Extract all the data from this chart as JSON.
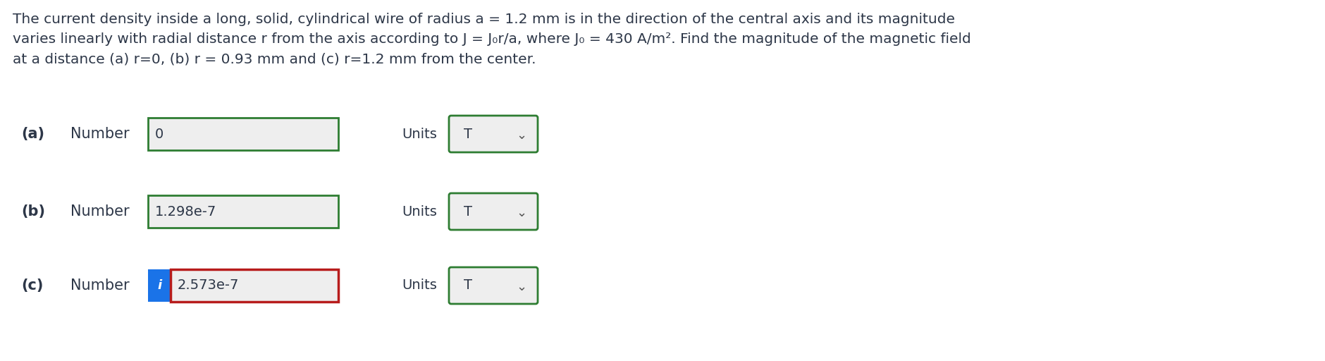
{
  "background_color": "#ffffff",
  "text_color": "#2d3748",
  "para_lines": [
    "The current density inside a long, solid, cylindrical wire of radius a = 1.2 mm is in the direction of the central axis and its magnitude",
    "varies linearly with radial distance r from the axis according to J = J₀r/a, where J₀ = 430 A/m². Find the magnitude of the magnetic field",
    "at a distance (a) r=0, (b) r = 0.93 mm and (c) r=1.2 mm from the center."
  ],
  "rows": [
    {
      "label": "(a)",
      "number_value": "0",
      "units_value": "T",
      "highlight": false
    },
    {
      "label": "(b)",
      "number_value": "1.298e-7",
      "units_value": "T",
      "highlight": false
    },
    {
      "label": "(c)",
      "number_value": "2.573e-7",
      "units_value": "T",
      "highlight": true
    }
  ],
  "box_border_color": "#2e7d32",
  "highlight_border_color": "#b71c1c",
  "highlight_icon_color": "#1a73e8",
  "box_fill_color": "#eeeeee",
  "units_fill_color": "#eeeeee",
  "label_fontsize": 15,
  "value_fontsize": 14,
  "units_fontsize": 14,
  "para_fontsize": 14.5
}
